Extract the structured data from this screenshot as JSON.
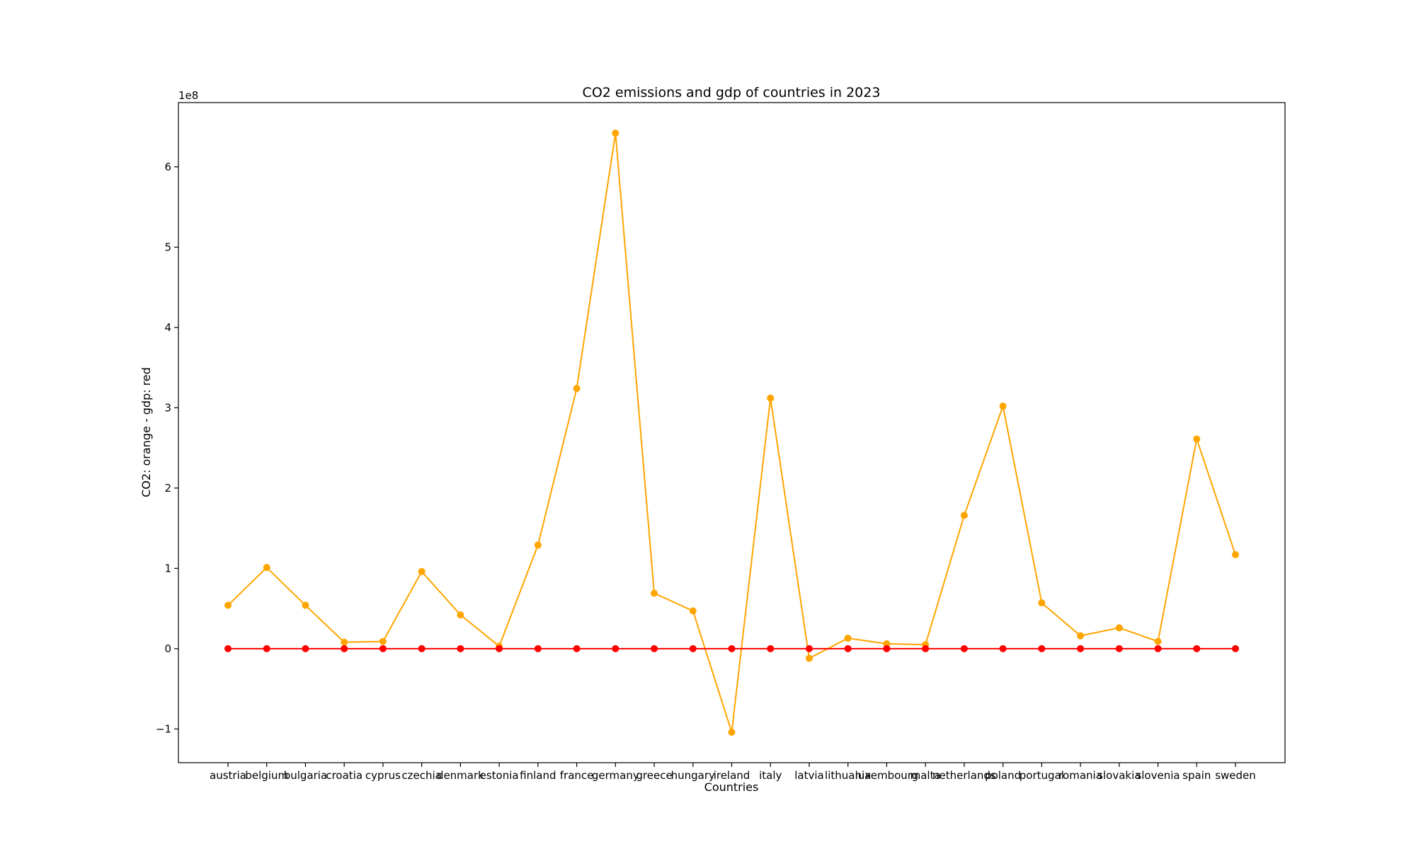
{
  "chart_data": {
    "type": "line",
    "title": "CO2 emissions and gdp of countries in 2023",
    "xlabel": "Countries",
    "ylabel": "CO2: orange - gdp: red",
    "y_offset_text": "1e8",
    "ylim": [
      -142000000,
      680000000
    ],
    "yticks": [
      -100000000,
      0,
      100000000,
      200000000,
      300000000,
      400000000,
      500000000,
      600000000
    ],
    "ytick_labels": [
      "−1",
      "0",
      "1",
      "2",
      "3",
      "4",
      "5",
      "6"
    ],
    "grid": false,
    "categories": [
      "austria",
      "belgium",
      "bulgaria",
      "croatia",
      "cyprus",
      "czechia",
      "denmark",
      "estonia",
      "finland",
      "france",
      "germany",
      "greece",
      "hungary",
      "ireland",
      "italy",
      "latvia",
      "lithuania",
      "luxembourg",
      "malta",
      "netherlands",
      "poland",
      "portugal",
      "romania",
      "slovakia",
      "slovenia",
      "spain",
      "sweden"
    ],
    "series": [
      {
        "color": "#FFA500",
        "values": [
          54000000,
          101000000,
          54000000,
          8000000,
          9000000,
          96000000,
          42000000,
          3000000,
          129000000,
          324000000,
          642000000,
          69000000,
          47000000,
          -104000000,
          312000000,
          -12000000,
          13000000,
          6000000,
          5000000,
          166000000,
          302000000,
          57000000,
          16000000,
          26000000,
          9000000,
          261000000,
          117000000
        ]
      },
      {
        "color": "#FF0000",
        "values": [
          0,
          0,
          0,
          0,
          0,
          0,
          0,
          0,
          0,
          0,
          0,
          0,
          0,
          0,
          0,
          0,
          0,
          0,
          0,
          0,
          0,
          0,
          0,
          0,
          0,
          0,
          0
        ]
      }
    ]
  }
}
